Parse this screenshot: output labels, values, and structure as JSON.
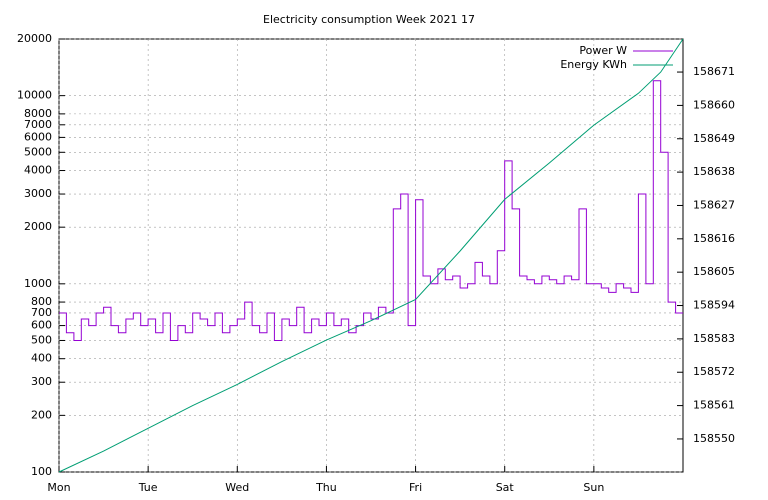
{
  "chart_data": {
    "type": "line",
    "title": "Electricity consumption Week 2021 17",
    "xlim": [
      0,
      168
    ],
    "xticks": [
      {
        "value": 0,
        "label": "Mon"
      },
      {
        "value": 24,
        "label": "Tue"
      },
      {
        "value": 48,
        "label": "Wed"
      },
      {
        "value": 72,
        "label": "Thu"
      },
      {
        "value": 96,
        "label": "Fri"
      },
      {
        "value": 120,
        "label": "Sat"
      },
      {
        "value": 144,
        "label": "Sun"
      }
    ],
    "ylim": [
      100,
      20000
    ],
    "log_y": true,
    "yticks": [
      100,
      200,
      300,
      400,
      500,
      600,
      700,
      800,
      1000,
      2000,
      3000,
      4000,
      5000,
      6000,
      7000,
      8000,
      10000,
      20000
    ],
    "y2lim": [
      158539.1,
      158681.9
    ],
    "y2ticks": [
      158550,
      158561,
      158572,
      158583,
      158594,
      158605,
      158616,
      158627,
      158638,
      158649,
      158660,
      158671
    ],
    "grid": true,
    "legend": "top-right",
    "series": [
      {
        "name": "Power W",
        "color": "#9400d3",
        "step": true,
        "x": [
          0,
          2,
          4,
          6,
          8,
          10,
          12,
          14,
          16,
          18,
          20,
          22,
          24,
          26,
          28,
          30,
          32,
          34,
          36,
          38,
          40,
          42,
          44,
          46,
          48,
          50,
          52,
          54,
          56,
          58,
          60,
          62,
          64,
          66,
          68,
          70,
          72,
          74,
          76,
          78,
          80,
          82,
          84,
          86,
          88,
          90,
          92,
          94,
          96,
          98,
          100,
          102,
          104,
          106,
          108,
          110,
          112,
          114,
          116,
          118,
          120,
          122,
          124,
          126,
          128,
          130,
          132,
          134,
          136,
          138,
          140,
          142,
          144,
          146,
          148,
          150,
          152,
          154,
          156,
          158,
          160,
          162,
          164,
          166
        ],
        "values": [
          700,
          550,
          500,
          650,
          600,
          700,
          750,
          600,
          550,
          650,
          700,
          600,
          650,
          550,
          700,
          500,
          600,
          550,
          700,
          650,
          600,
          700,
          550,
          600,
          650,
          800,
          600,
          550,
          700,
          500,
          650,
          600,
          750,
          550,
          650,
          600,
          700,
          600,
          650,
          550,
          600,
          700,
          650,
          750,
          700,
          2500,
          3000,
          600,
          2800,
          1100,
          1000,
          1200,
          1050,
          1100,
          950,
          1000,
          1300,
          1100,
          1000,
          1500,
          4500,
          2500,
          1100,
          1050,
          1000,
          1100,
          1050,
          1000,
          1100,
          1050,
          2500,
          1000,
          1000,
          950,
          900,
          1000,
          950,
          900,
          3000,
          1000,
          12000,
          5000,
          800,
          700
        ]
      },
      {
        "name": "Energy KWh",
        "color": "#009e73",
        "axis": "y2",
        "x": [
          0,
          12,
          24,
          36,
          48,
          60,
          72,
          84,
          96,
          108,
          120,
          132,
          144,
          156,
          162,
          168
        ],
        "values": [
          158539.1,
          158546,
          158553.5,
          158561,
          158568,
          158575.5,
          158582.6,
          158589,
          158596,
          158612,
          158629,
          158641,
          158653.5,
          158664,
          158671,
          158681.9
        ]
      }
    ]
  }
}
